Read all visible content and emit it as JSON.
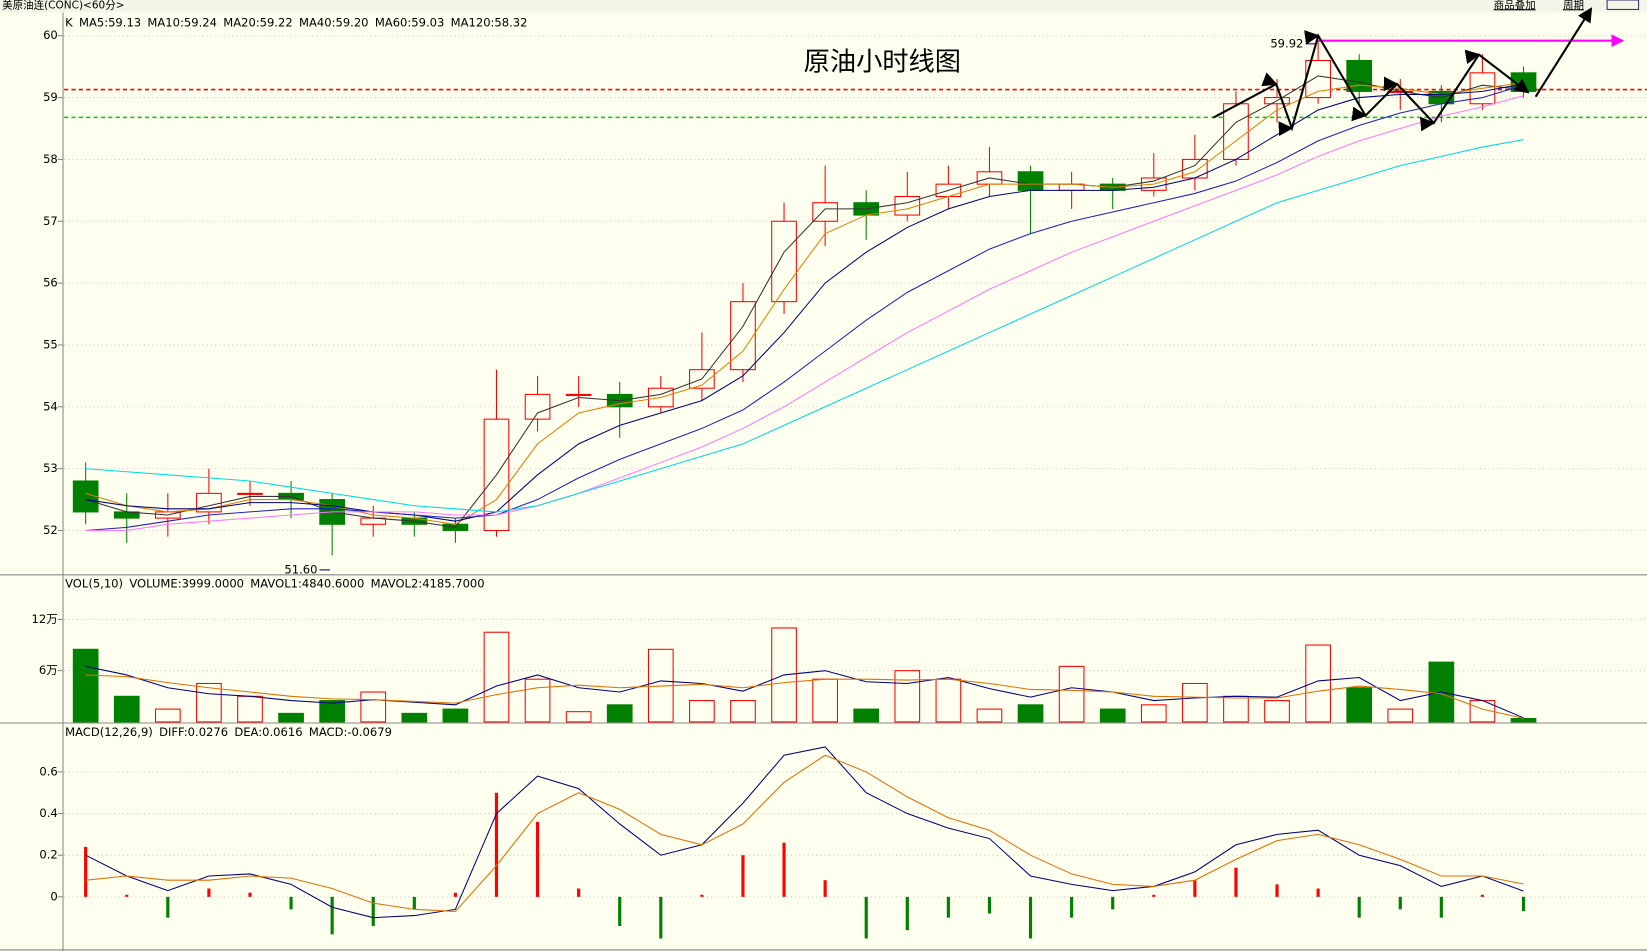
{
  "header": {
    "title": "美原油连(CONC)<60分>",
    "links": [
      "商品叠加",
      "周期"
    ]
  },
  "chart_data": [
    {
      "type": "candlestick",
      "label": "K",
      "title": "原油小时线图",
      "open": [
        52.8,
        52.3,
        52.2,
        52.3,
        52.6,
        52.6,
        52.5,
        52.1,
        52.2,
        52.1,
        52.0,
        53.8,
        54.2,
        54.2,
        54.0,
        54.3,
        54.6,
        55.7,
        57.0,
        57.3,
        57.1,
        57.4,
        57.6,
        57.8,
        57.5,
        57.6,
        57.5,
        57.7,
        58.0,
        58.9,
        59.0,
        59.6,
        59.1,
        59.1,
        58.9,
        59.4
      ],
      "high": [
        53.1,
        52.6,
        52.6,
        53.0,
        52.8,
        52.8,
        52.6,
        52.4,
        52.3,
        52.2,
        54.6,
        54.5,
        54.5,
        54.4,
        54.5,
        55.2,
        56.0,
        57.3,
        57.9,
        57.5,
        57.8,
        57.9,
        58.2,
        57.9,
        57.8,
        57.7,
        58.1,
        58.4,
        59.1,
        59.3,
        59.92,
        59.7,
        59.3,
        59.2,
        59.7,
        59.5
      ],
      "low": [
        52.1,
        51.8,
        51.9,
        52.1,
        52.4,
        52.2,
        51.6,
        51.9,
        51.9,
        51.8,
        51.9,
        53.6,
        54.0,
        53.5,
        53.9,
        54.1,
        54.4,
        55.5,
        56.6,
        56.7,
        57.0,
        57.2,
        57.4,
        56.8,
        57.2,
        57.2,
        57.4,
        57.5,
        57.9,
        58.6,
        58.9,
        58.9,
        58.8,
        58.6,
        58.8,
        59.0
      ],
      "close": [
        52.3,
        52.2,
        52.3,
        52.6,
        52.6,
        52.5,
        52.1,
        52.2,
        52.1,
        52.0,
        53.8,
        54.2,
        54.2,
        54.0,
        54.3,
        54.6,
        55.7,
        57.0,
        57.3,
        57.1,
        57.4,
        57.6,
        57.8,
        57.5,
        57.6,
        57.5,
        57.7,
        58.0,
        58.9,
        59.0,
        59.6,
        59.1,
        59.1,
        58.9,
        59.4,
        59.1
      ],
      "up_color": "#ff0000",
      "down_color": "#008000",
      "series": [
        {
          "name": "MA5:59.13",
          "color": "#333333",
          "values": [
            52.5,
            52.3,
            52.25,
            52.4,
            52.55,
            52.55,
            52.3,
            52.2,
            52.15,
            52.05,
            52.9,
            53.9,
            54.15,
            54.1,
            54.2,
            54.45,
            55.3,
            56.5,
            57.2,
            57.2,
            57.3,
            57.5,
            57.7,
            57.6,
            57.6,
            57.55,
            57.65,
            57.9,
            58.6,
            58.95,
            59.35,
            59.25,
            59.1,
            59.0,
            59.2,
            59.13
          ]
        },
        {
          "name": "MA10:59.24",
          "color": "#e08000",
          "values": [
            52.6,
            52.4,
            52.3,
            52.35,
            52.5,
            52.5,
            52.4,
            52.25,
            52.2,
            52.1,
            52.5,
            53.4,
            53.9,
            54.05,
            54.15,
            54.35,
            54.9,
            55.9,
            56.8,
            57.1,
            57.2,
            57.4,
            57.6,
            57.6,
            57.6,
            57.55,
            57.6,
            57.8,
            58.3,
            58.8,
            59.1,
            59.2,
            59.15,
            59.05,
            59.15,
            59.24
          ]
        },
        {
          "name": "MA20:59.22",
          "color": "#000080",
          "values": [
            52.5,
            52.4,
            52.35,
            52.35,
            52.45,
            52.45,
            52.4,
            52.3,
            52.25,
            52.15,
            52.3,
            52.9,
            53.4,
            53.7,
            53.9,
            54.1,
            54.5,
            55.2,
            56.0,
            56.5,
            56.9,
            57.2,
            57.4,
            57.5,
            57.5,
            57.5,
            57.55,
            57.7,
            58.0,
            58.4,
            58.8,
            59.0,
            59.05,
            59.05,
            59.1,
            59.22
          ]
        },
        {
          "name": "MA40:59.20",
          "color": "#2020c0",
          "values": [
            52.0,
            52.05,
            52.15,
            52.25,
            52.3,
            52.35,
            52.35,
            52.3,
            52.25,
            52.2,
            52.25,
            52.5,
            52.85,
            53.15,
            53.4,
            53.65,
            53.95,
            54.4,
            54.9,
            55.4,
            55.85,
            56.2,
            56.55,
            56.8,
            57.0,
            57.15,
            57.3,
            57.45,
            57.65,
            57.95,
            58.3,
            58.55,
            58.75,
            58.9,
            59.0,
            59.2
          ]
        },
        {
          "name": "MA60:59.03",
          "color": "#ff77ff",
          "values": [
            52.0,
            52.0,
            52.1,
            52.15,
            52.2,
            52.25,
            52.3,
            52.3,
            52.3,
            52.25,
            52.25,
            52.4,
            52.6,
            52.85,
            53.1,
            53.35,
            53.65,
            54.0,
            54.4,
            54.8,
            55.2,
            55.55,
            55.9,
            56.2,
            56.5,
            56.75,
            57.0,
            57.25,
            57.5,
            57.75,
            58.05,
            58.3,
            58.5,
            58.7,
            58.85,
            59.03
          ]
        },
        {
          "name": "MA120:58.32",
          "color": "#00d8e8",
          "values": [
            53.0,
            52.95,
            52.9,
            52.85,
            52.8,
            52.7,
            52.6,
            52.5,
            52.4,
            52.35,
            52.3,
            52.4,
            52.6,
            52.8,
            53.0,
            53.2,
            53.4,
            53.7,
            54.0,
            54.3,
            54.6,
            54.9,
            55.2,
            55.5,
            55.8,
            56.1,
            56.4,
            56.7,
            57.0,
            57.3,
            57.5,
            57.7,
            57.9,
            58.05,
            58.2,
            58.32
          ]
        }
      ],
      "annotations": [
        {
          "value": 59.92,
          "label": "59.92"
        },
        {
          "value": 51.6,
          "label": "51.60"
        }
      ],
      "reference_lines": [
        {
          "value": 59.13,
          "color": "#ff0000"
        },
        {
          "value": 58.68,
          "color": "#00cc00"
        }
      ],
      "ylim": [
        51.3,
        60.34
      ],
      "yticks": [
        52,
        53,
        54,
        55,
        56,
        57,
        58,
        59,
        60
      ],
      "grid": true
    },
    {
      "type": "bar",
      "label": "VOL(5,10)",
      "bars": {
        "name": "VOLUME:3999.0000",
        "values": [
          8.5,
          3.0,
          1.5,
          4.5,
          3.0,
          1.0,
          2.5,
          3.5,
          1.0,
          1.5,
          10.5,
          5.0,
          1.2,
          2.0,
          8.5,
          2.5,
          2.5,
          11.0,
          5.0,
          1.5,
          6.0,
          5.0,
          1.5,
          2.0,
          6.5,
          1.5,
          2.0,
          4.5,
          3.0,
          2.5,
          9.0,
          4.0,
          1.5,
          7.0,
          2.5,
          0.4
        ]
      },
      "series": [
        {
          "name": "MAVOL1:4840.6000",
          "color": "#000080",
          "values": [
            6.5,
            5.5,
            4.0,
            3.3,
            3.0,
            2.5,
            2.2,
            2.6,
            2.3,
            2.0,
            4.2,
            5.5,
            4.0,
            3.5,
            4.8,
            4.5,
            3.6,
            5.5,
            6.0,
            4.7,
            4.5,
            5.2,
            3.9,
            2.9,
            4.0,
            3.5,
            2.5,
            2.8,
            3.0,
            2.9,
            4.8,
            5.2,
            2.5,
            3.5,
            2.5,
            0.48
          ]
        },
        {
          "name": "MAVOL2:4185.7000",
          "color": "#e07000",
          "values": [
            5.5,
            5.3,
            4.6,
            4.0,
            3.5,
            3.0,
            2.7,
            2.6,
            2.4,
            2.2,
            3.2,
            4.0,
            4.3,
            4.0,
            4.2,
            4.4,
            4.0,
            4.6,
            5.0,
            5.0,
            4.9,
            5.0,
            4.5,
            3.8,
            3.7,
            3.5,
            3.0,
            2.9,
            2.8,
            2.8,
            3.6,
            4.2,
            3.8,
            3.3,
            1.5,
            0.42
          ]
        }
      ],
      "ylim": [
        0,
        17.1
      ],
      "yticks": [
        {
          "value": 6,
          "label": "6万"
        },
        {
          "value": 12,
          "label": "12万"
        }
      ],
      "grid": true
    },
    {
      "type": "macd",
      "label": "MACD(12,26,9)",
      "series": [
        {
          "name": "DIFF:0.0276",
          "color": "#000080",
          "values": [
            0.2,
            0.1,
            0.03,
            0.1,
            0.11,
            0.06,
            -0.05,
            -0.1,
            -0.09,
            -0.06,
            0.4,
            0.58,
            0.52,
            0.35,
            0.2,
            0.25,
            0.45,
            0.68,
            0.72,
            0.5,
            0.4,
            0.33,
            0.28,
            0.1,
            0.06,
            0.03,
            0.05,
            0.12,
            0.25,
            0.3,
            0.32,
            0.2,
            0.15,
            0.05,
            0.1,
            0.0276
          ]
        },
        {
          "name": "DEA:0.0616",
          "color": "#e07000",
          "values": [
            0.08,
            0.1,
            0.08,
            0.08,
            0.1,
            0.09,
            0.04,
            -0.03,
            -0.06,
            -0.07,
            0.15,
            0.4,
            0.5,
            0.42,
            0.3,
            0.25,
            0.35,
            0.55,
            0.68,
            0.6,
            0.48,
            0.38,
            0.32,
            0.2,
            0.11,
            0.06,
            0.05,
            0.08,
            0.18,
            0.27,
            0.3,
            0.25,
            0.18,
            0.1,
            0.1,
            0.0616
          ]
        }
      ],
      "bars": {
        "name": "MACD:-0.0679",
        "values": [
          0.24,
          0.01,
          -0.1,
          0.04,
          0.02,
          -0.06,
          -0.18,
          -0.14,
          -0.06,
          0.02,
          0.5,
          0.36,
          0.04,
          -0.14,
          -0.2,
          0.01,
          0.2,
          0.26,
          0.08,
          -0.2,
          -0.16,
          -0.1,
          -0.08,
          -0.2,
          -0.1,
          -0.06,
          0.01,
          0.08,
          0.14,
          0.06,
          0.04,
          -0.1,
          -0.06,
          -0.1,
          0.01,
          -0.0679
        ]
      },
      "up_color": "#ff0000",
      "down_color": "#008000",
      "ylim": [
        -0.25,
        0.83
      ],
      "yticks": [
        0,
        0.2,
        0.4,
        0.6
      ],
      "grid": true
    }
  ]
}
